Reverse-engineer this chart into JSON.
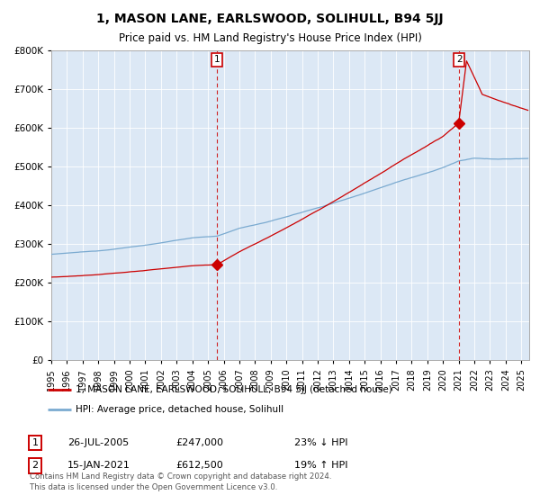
{
  "title": "1, MASON LANE, EARLSWOOD, SOLIHULL, B94 5JJ",
  "subtitle": "Price paid vs. HM Land Registry's House Price Index (HPI)",
  "ylim": [
    0,
    800000
  ],
  "yticks": [
    0,
    100000,
    200000,
    300000,
    400000,
    500000,
    600000,
    700000,
    800000
  ],
  "xlim_start": 1995.0,
  "xlim_end": 2025.5,
  "hpi_color": "#7aaad0",
  "price_color": "#cc0000",
  "bg_color": "#dce8f5",
  "sale1_date": 2005.57,
  "sale1_price": 247000,
  "sale2_date": 2021.04,
  "sale2_price": 612500,
  "legend_line1": "1, MASON LANE, EARLSWOOD, SOLIHULL, B94 5JJ (detached house)",
  "legend_line2": "HPI: Average price, detached house, Solihull",
  "table_row1": [
    "1",
    "26-JUL-2005",
    "£247,000",
    "23% ↓ HPI"
  ],
  "table_row2": [
    "2",
    "15-JAN-2021",
    "£612,500",
    "19% ↑ HPI"
  ],
  "footer": "Contains HM Land Registry data © Crown copyright and database right 2024.\nThis data is licensed under the Open Government Licence v3.0.",
  "grid_color": "#ffffff"
}
